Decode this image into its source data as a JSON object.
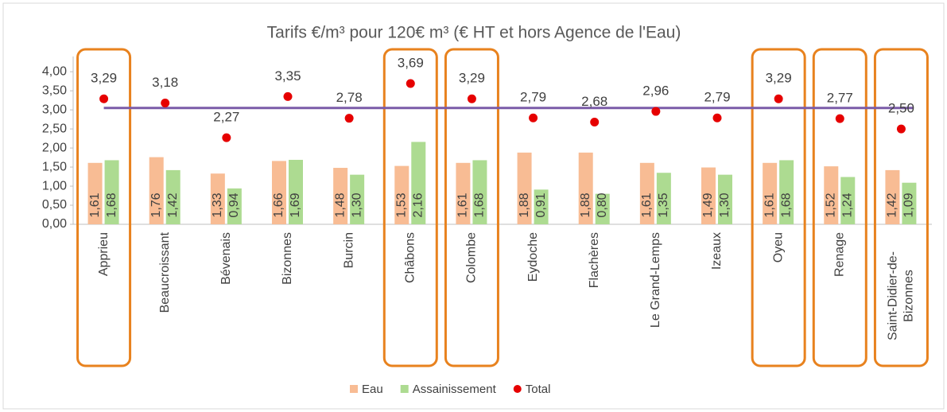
{
  "chart_data": {
    "type": "bar",
    "title": "Tarifs €/m³ pour 120€ m³ (€ HT et hors Agence de l'Eau)",
    "categories": [
      "Apprieu",
      "Beaucroissant",
      "Bévenais",
      "Bizonnes",
      "Burcin",
      "Châbons",
      "Colombe",
      "Eydoche",
      "Flachères",
      "Le Grand-Lemps",
      "Izeaux",
      "Oyeu",
      "Renage",
      "Saint-Didier-de-Bizonnes"
    ],
    "series": [
      {
        "name": "Eau",
        "color": "#f8bc94",
        "kind": "bar",
        "values": [
          1.61,
          1.76,
          1.33,
          1.66,
          1.48,
          1.53,
          1.61,
          1.88,
          1.88,
          1.61,
          1.49,
          1.61,
          1.52,
          1.42
        ],
        "value_labels": [
          "1,61",
          "1,76",
          "1,33",
          "1,66",
          "1,48",
          "1,53",
          "1,61",
          "1,88",
          "1,88",
          "1,61",
          "1,49",
          "1,61",
          "1,52",
          "1,42"
        ]
      },
      {
        "name": "Assainissement",
        "color": "#addb91",
        "kind": "bar",
        "values": [
          1.68,
          1.42,
          0.94,
          1.69,
          1.3,
          2.16,
          1.68,
          0.91,
          0.8,
          1.35,
          1.3,
          1.68,
          1.24,
          1.09
        ],
        "value_labels": [
          "1,68",
          "1,42",
          "0,94",
          "1,69",
          "1,30",
          "2,16",
          "1,68",
          "0,91",
          "0,80",
          "1,35",
          "1,30",
          "1,68",
          "1,24",
          "1,09"
        ]
      },
      {
        "name": "Total",
        "color": "#e60000",
        "kind": "dot",
        "values": [
          3.29,
          3.18,
          2.27,
          3.35,
          2.78,
          3.69,
          3.29,
          2.79,
          2.68,
          2.96,
          2.79,
          3.29,
          2.77,
          2.5
        ],
        "value_labels": [
          "3,29",
          "3,18",
          "2,27",
          "3,35",
          "2,78",
          "3,69",
          "3,29",
          "2,79",
          "2,68",
          "2,96",
          "2,79",
          "3,29",
          "2,77",
          "2,50"
        ]
      }
    ],
    "reference_line": {
      "value": 3.05,
      "color": "#7b5ca8"
    },
    "highlighted": [
      0,
      5,
      6,
      11,
      12,
      13
    ],
    "highlight_color": "#e8821e",
    "ylim": [
      0,
      4.4
    ],
    "yticks": [
      {
        "value": 0,
        "label": "0,00"
      },
      {
        "value": 0.5,
        "label": "0,50"
      },
      {
        "value": 1,
        "label": "1,00"
      },
      {
        "value": 1.5,
        "label": "1,50"
      },
      {
        "value": 2,
        "label": "2,00"
      },
      {
        "value": 2.5,
        "label": "2,50"
      },
      {
        "value": 3,
        "label": "3,00"
      },
      {
        "value": 3.5,
        "label": "3,50"
      },
      {
        "value": 4,
        "label": "4,00"
      }
    ],
    "legend": "bottom"
  }
}
